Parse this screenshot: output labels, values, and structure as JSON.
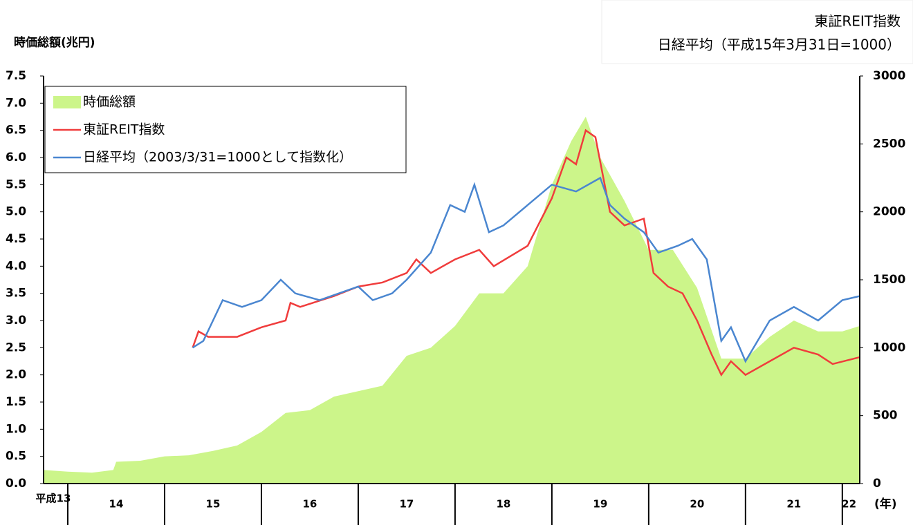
{
  "chart_data": {
    "type": "combo",
    "y_label": "時価総額(兆円)",
    "y2_label_lines": [
      "東証REIT指数",
      "日経平均（平成15年3月31日=1000）"
    ],
    "x_unit": "(年)",
    "xlim": [
      13.75,
      22.18
    ],
    "xticks": [
      {
        "value": 13.85,
        "label": "平成13"
      },
      {
        "value": 14.5,
        "label": "14"
      },
      {
        "value": 15.5,
        "label": "15"
      },
      {
        "value": 16.5,
        "label": "16"
      },
      {
        "value": 17.5,
        "label": "17"
      },
      {
        "value": 18.5,
        "label": "18"
      },
      {
        "value": 19.5,
        "label": "19"
      },
      {
        "value": 20.5,
        "label": "20"
      },
      {
        "value": 21.5,
        "label": "21"
      },
      {
        "value": 22.07,
        "label": "22"
      }
    ],
    "xgrid": [
      14,
      15,
      16,
      17,
      18,
      19,
      20,
      21,
      22
    ],
    "ylim": [
      0,
      7.5
    ],
    "yticks": [
      {
        "value": 0,
        "label": "0.0"
      },
      0.5,
      {
        "value": 1,
        "label": "1.0"
      },
      1.5,
      {
        "value": 2,
        "label": "2.0"
      },
      2.5,
      {
        "value": 3,
        "label": "3.0"
      },
      3.5,
      {
        "value": 4,
        "label": "4.0"
      },
      4.5,
      {
        "value": 5,
        "label": "5.0"
      },
      5.5,
      {
        "value": 6,
        "label": "6.0"
      },
      6.5,
      {
        "value": 7,
        "label": "7.0"
      },
      7.5
    ],
    "y2lim": [
      0,
      3000
    ],
    "y2ticks": [
      0,
      500,
      1000,
      1500,
      2000,
      2500,
      3000
    ],
    "legend": "upper left",
    "series": [
      {
        "name": "時価総額",
        "type": "area",
        "color": "#ccf58a",
        "x": [
          13.75,
          14.0,
          14.25,
          14.47,
          14.5,
          14.75,
          15.0,
          15.25,
          15.5,
          15.75,
          16.0,
          16.25,
          16.5,
          16.75,
          17.0,
          17.25,
          17.5,
          17.75,
          18.0,
          18.25,
          18.5,
          18.75,
          19.0,
          19.2,
          19.35,
          19.5,
          19.75,
          20.0,
          20.25,
          20.5,
          20.75,
          21.0,
          21.25,
          21.5,
          21.75,
          22.0,
          22.18
        ],
        "values": [
          0.25,
          0.22,
          0.2,
          0.25,
          0.4,
          0.42,
          0.5,
          0.52,
          0.6,
          0.7,
          0.95,
          1.3,
          1.35,
          1.6,
          1.7,
          1.8,
          2.35,
          2.5,
          2.9,
          3.5,
          3.5,
          4.0,
          5.5,
          6.3,
          6.75,
          6.0,
          5.2,
          4.3,
          4.3,
          3.6,
          2.3,
          2.3,
          2.7,
          3.0,
          2.8,
          2.8,
          2.9
        ]
      },
      {
        "name": "東証REIT指数",
        "type": "line",
        "axis": "y2",
        "color": "#f03c3c",
        "x": [
          15.29,
          15.35,
          15.45,
          15.75,
          16.0,
          16.25,
          16.3,
          16.4,
          16.75,
          17.0,
          17.25,
          17.5,
          17.6,
          17.75,
          18.0,
          18.25,
          18.4,
          18.75,
          19.0,
          19.15,
          19.25,
          19.35,
          19.45,
          19.6,
          19.75,
          19.95,
          20.05,
          20.2,
          20.35,
          20.5,
          20.65,
          20.75,
          20.85,
          21.0,
          21.25,
          21.5,
          21.75,
          21.9,
          22.18
        ],
        "values": [
          1000,
          1120,
          1080,
          1080,
          1150,
          1200,
          1330,
          1300,
          1380,
          1450,
          1480,
          1550,
          1650,
          1550,
          1650,
          1720,
          1600,
          1750,
          2100,
          2400,
          2350,
          2600,
          2550,
          2000,
          1900,
          1950,
          1550,
          1450,
          1400,
          1200,
          950,
          800,
          900,
          800,
          900,
          1000,
          950,
          880,
          930
        ]
      },
      {
        "name": "日経平均（2003/3/31=1000として指数化）",
        "type": "line",
        "axis": "y2",
        "color": "#4a86d0",
        "x": [
          15.29,
          15.4,
          15.6,
          15.8,
          16.0,
          16.2,
          16.35,
          16.6,
          16.8,
          17.0,
          17.15,
          17.35,
          17.5,
          17.75,
          17.95,
          18.1,
          18.2,
          18.35,
          18.5,
          18.75,
          19.0,
          19.25,
          19.5,
          19.6,
          19.75,
          19.95,
          20.1,
          20.3,
          20.45,
          20.6,
          20.75,
          20.85,
          21.0,
          21.25,
          21.5,
          21.75,
          22.0,
          22.18
        ],
        "values": [
          1000,
          1050,
          1350,
          1300,
          1350,
          1500,
          1400,
          1350,
          1400,
          1450,
          1350,
          1400,
          1500,
          1700,
          2050,
          2000,
          2200,
          1850,
          1900,
          2050,
          2200,
          2150,
          2250,
          2050,
          1950,
          1850,
          1700,
          1750,
          1800,
          1650,
          1050,
          1150,
          900,
          1200,
          1300,
          1200,
          1350,
          1380
        ]
      }
    ]
  }
}
